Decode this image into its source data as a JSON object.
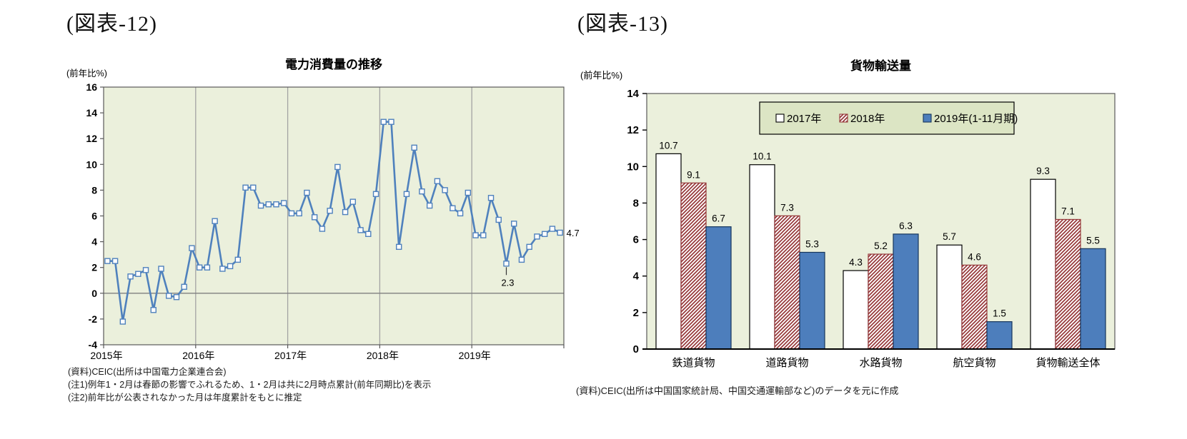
{
  "page": {
    "background": "#ffffff"
  },
  "chart_data": [
    {
      "type": "line",
      "figure_label": "(図表-12)",
      "title": "電力消費量の推移",
      "ylabel": "(前年比%)",
      "ylim": [
        -4,
        16
      ],
      "ytick_step": 2,
      "grid": "vertical-yearly",
      "legend_position": "none",
      "years": [
        "2015年",
        "2016年",
        "2017年",
        "2018年",
        "2019年"
      ],
      "points_per_year": 12,
      "series": [
        {
          "name": "電力消費量(前年比%)",
          "values": [
            2.5,
            2.5,
            -2.2,
            1.3,
            1.5,
            1.8,
            -1.3,
            1.9,
            -0.2,
            -0.3,
            0.5,
            3.5,
            2.0,
            2.0,
            5.6,
            1.9,
            2.1,
            2.6,
            8.2,
            8.2,
            6.8,
            6.9,
            6.9,
            7.0,
            6.2,
            6.2,
            7.8,
            5.9,
            5.0,
            6.4,
            9.8,
            6.3,
            7.1,
            4.9,
            4.6,
            7.7,
            13.3,
            13.3,
            3.6,
            7.7,
            11.3,
            7.9,
            6.8,
            8.7,
            8.0,
            6.6,
            6.2,
            7.8,
            4.5,
            4.5,
            7.4,
            5.7,
            2.3,
            5.4,
            2.6,
            3.6,
            4.4,
            4.6,
            5.0,
            4.7
          ]
        }
      ],
      "annotations": [
        {
          "index": 52,
          "label": "2.3",
          "placement": "below"
        },
        {
          "index": 59,
          "label": "4.7",
          "placement": "right"
        }
      ],
      "notes": [
        "(資料)CEIC(出所は中国電力企業連合会)",
        "(注1)例年1・2月は春節の影響でふれるため、1・2月は共に2月時点累計(前年同期比)を表示",
        "(注2)前年比が公表されなかった月は年度累計をもとに推定"
      ],
      "colors": {
        "line": "#4F81BD",
        "marker_fill": "#FCFDFE",
        "plot_bg": "#EBF0DC",
        "gridline": "#A3A3A3",
        "zero_line": "#7F7F7F",
        "border": "#595959",
        "annotation_line": "#333333"
      }
    },
    {
      "type": "bar",
      "figure_label": "(図表-13)",
      "title": "貨物輸送量",
      "ylabel": "(前年比%)",
      "ylim": [
        0,
        14
      ],
      "ytick_step": 2,
      "grid": "none",
      "legend_position": "top-inside",
      "categories": [
        "鉄道貨物",
        "道路貨物",
        "水路貨物",
        "航空貨物",
        "貨物輸送全体"
      ],
      "series": [
        {
          "name": "2017年",
          "style": "white",
          "values": [
            10.7,
            10.1,
            4.3,
            5.7,
            9.3
          ]
        },
        {
          "name": "2018年",
          "style": "hatched",
          "values": [
            9.1,
            7.3,
            5.2,
            4.6,
            7.1
          ]
        },
        {
          "name": "2019年(1-11月期)",
          "style": "blue",
          "values": [
            6.7,
            5.3,
            6.3,
            1.5,
            5.5
          ]
        }
      ],
      "source": "(資料)CEIC(出所は中国国家統計局、中国交通運輸部など)のデータを元に作成",
      "colors": {
        "plot_bg": "#EBF0DC",
        "border": "#595959",
        "axis": "#000000",
        "bar_white": "#FFFFFF",
        "bar_white_border": "#000000",
        "hatch": "#96383A",
        "bar_blue": "#4D7EBC",
        "bar_blue_border": "#16365C",
        "legend_bg": "#DCE5C4",
        "legend_border": "#000000"
      }
    }
  ]
}
